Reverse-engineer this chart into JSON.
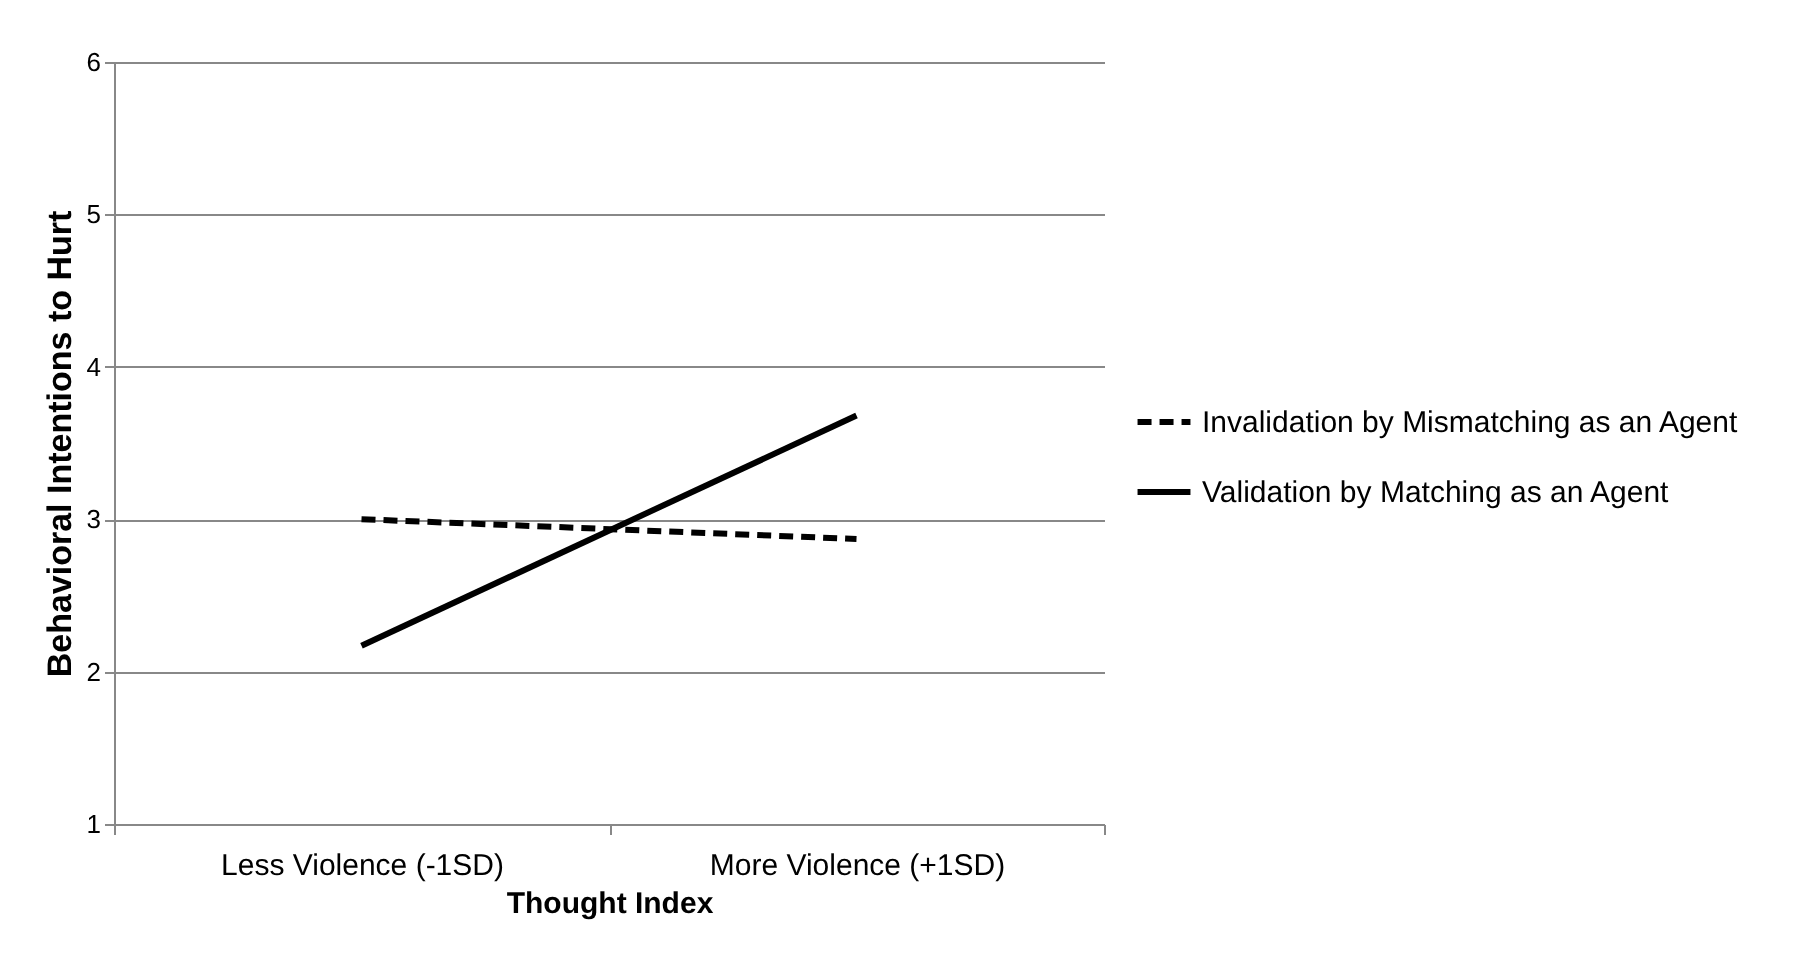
{
  "chart_data": {
    "type": "line",
    "xlabel": "Thought Index",
    "ylabel": "Behavioral Intentions to Hurt",
    "categories": [
      "Less Violence (-1SD)",
      "More Violence (+1SD)"
    ],
    "series": [
      {
        "name": "Invalidation by Mismatching as an Agent",
        "color": "#000000",
        "line_style": "dashed",
        "values": [
          3.0,
          2.87
        ]
      },
      {
        "name": "Validation by Matching as an Agent",
        "color": "#000000",
        "line_style": "solid",
        "values": [
          2.17,
          3.68
        ]
      }
    ],
    "ylim": [
      1,
      6
    ],
    "yticks": [
      1,
      2,
      3,
      4,
      5,
      6
    ],
    "grid": "y",
    "legend": "right",
    "marker": "none"
  }
}
